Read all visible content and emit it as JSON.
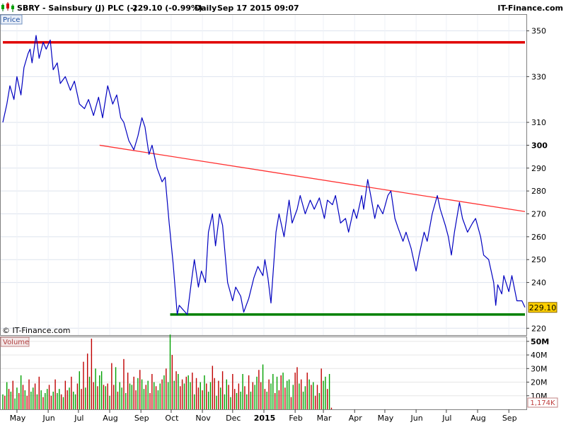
{
  "header": {
    "ticker": "SBRY - Sainsbury (J) PLC (-)",
    "quote": "229.10 (-0.99%)",
    "interval": "Daily",
    "datetime": "Sep 17 2015 09:07",
    "brand": "IT-Finance.com"
  },
  "copyright": "© IT-Finance.com",
  "colors": {
    "price_line": "#0000c0",
    "resistance": "#e00000",
    "trendline": "#ff3030",
    "support": "#008000",
    "volume_up": "#00a000",
    "volume_down": "#c00000",
    "last_price_badge": "#ffd000"
  },
  "chart_data": [
    {
      "type": "line",
      "panel_label": "Price",
      "last_price_label": "229.10",
      "ylim": [
        217,
        357
      ],
      "yticks": [
        350,
        330,
        310,
        300,
        290,
        280,
        270,
        260,
        250,
        240,
        220
      ],
      "grid": true,
      "x_start": "2014-04-17",
      "x_end": "2015-09-17",
      "xticks": [
        {
          "date": "2014-05-01",
          "label": "May"
        },
        {
          "date": "2014-06-01",
          "label": "Jun"
        },
        {
          "date": "2014-07-01",
          "label": "Jul"
        },
        {
          "date": "2014-08-01",
          "label": "Aug"
        },
        {
          "date": "2014-09-01",
          "label": "Sep"
        },
        {
          "date": "2014-10-01",
          "label": "Oct"
        },
        {
          "date": "2014-11-01",
          "label": "Nov"
        },
        {
          "date": "2014-12-01",
          "label": "Dec"
        },
        {
          "date": "2015-01-01",
          "label": "2015",
          "bold": true
        },
        {
          "date": "2015-02-01",
          "label": "Feb"
        },
        {
          "date": "2015-03-01",
          "label": "Mar"
        },
        {
          "date": "2015-04-01",
          "label": "Apr"
        },
        {
          "date": "2015-05-01",
          "label": "May"
        },
        {
          "date": "2015-06-01",
          "label": "Jun"
        },
        {
          "date": "2015-07-01",
          "label": "Jul"
        },
        {
          "date": "2015-08-01",
          "label": "Aug"
        },
        {
          "date": "2015-09-01",
          "label": "Sep"
        }
      ],
      "series": [
        {
          "points": [
            [
              "2014-04-17",
              310
            ],
            [
              "2014-04-21",
              318
            ],
            [
              "2014-04-24",
              326
            ],
            [
              "2014-04-28",
              320
            ],
            [
              "2014-05-01",
              330
            ],
            [
              "2014-05-05",
              322
            ],
            [
              "2014-05-08",
              334
            ],
            [
              "2014-05-12",
              340
            ],
            [
              "2014-05-14",
              342
            ],
            [
              "2014-05-16",
              336
            ],
            [
              "2014-05-20",
              348
            ],
            [
              "2014-05-23",
              338
            ],
            [
              "2014-05-27",
              345
            ],
            [
              "2014-05-30",
              342
            ],
            [
              "2014-06-03",
              346
            ],
            [
              "2014-06-06",
              333
            ],
            [
              "2014-06-10",
              336
            ],
            [
              "2014-06-13",
              327
            ],
            [
              "2014-06-18",
              330
            ],
            [
              "2014-06-23",
              324
            ],
            [
              "2014-06-27",
              328
            ],
            [
              "2014-07-02",
              318
            ],
            [
              "2014-07-07",
              316
            ],
            [
              "2014-07-11",
              320
            ],
            [
              "2014-07-16",
              313
            ],
            [
              "2014-07-21",
              321
            ],
            [
              "2014-07-25",
              312
            ],
            [
              "2014-07-30",
              326
            ],
            [
              "2014-08-04",
              318
            ],
            [
              "2014-08-08",
              322
            ],
            [
              "2014-08-12",
              312
            ],
            [
              "2014-08-15",
              310
            ],
            [
              "2014-08-20",
              302
            ],
            [
              "2014-08-25",
              298
            ],
            [
              "2014-08-29",
              304
            ],
            [
              "2014-09-02",
              312
            ],
            [
              "2014-09-05",
              308
            ],
            [
              "2014-09-09",
              296
            ],
            [
              "2014-09-12",
              300
            ],
            [
              "2014-09-17",
              290
            ],
            [
              "2014-09-22",
              284
            ],
            [
              "2014-09-25",
              286
            ],
            [
              "2014-09-29",
              266
            ],
            [
              "2014-10-03",
              248
            ],
            [
              "2014-10-07",
              226
            ],
            [
              "2014-10-09",
              230
            ],
            [
              "2014-10-13",
              228
            ],
            [
              "2014-10-17",
              226
            ],
            [
              "2014-10-21",
              240
            ],
            [
              "2014-10-24",
              250
            ],
            [
              "2014-10-28",
              238
            ],
            [
              "2014-10-31",
              245
            ],
            [
              "2014-11-04",
              240
            ],
            [
              "2014-11-07",
              262
            ],
            [
              "2014-11-11",
              270
            ],
            [
              "2014-11-14",
              256
            ],
            [
              "2014-11-18",
              270
            ],
            [
              "2014-11-21",
              265
            ],
            [
              "2014-11-26",
              240
            ],
            [
              "2014-12-01",
              232
            ],
            [
              "2014-12-04",
              238
            ],
            [
              "2014-12-09",
              234
            ],
            [
              "2014-12-12",
              227
            ],
            [
              "2014-12-17",
              233
            ],
            [
              "2014-12-22",
              242
            ],
            [
              "2014-12-26",
              247
            ],
            [
              "2014-12-31",
              243
            ],
            [
              "2015-01-02",
              250
            ],
            [
              "2015-01-05",
              242
            ],
            [
              "2015-01-08",
              231
            ],
            [
              "2015-01-13",
              262
            ],
            [
              "2015-01-16",
              270
            ],
            [
              "2015-01-21",
              260
            ],
            [
              "2015-01-26",
              276
            ],
            [
              "2015-01-29",
              266
            ],
            [
              "2015-02-03",
              272
            ],
            [
              "2015-02-06",
              278
            ],
            [
              "2015-02-11",
              270
            ],
            [
              "2015-02-16",
              276
            ],
            [
              "2015-02-20",
              272
            ],
            [
              "2015-02-25",
              277
            ],
            [
              "2015-03-02",
              268
            ],
            [
              "2015-03-05",
              276
            ],
            [
              "2015-03-10",
              274
            ],
            [
              "2015-03-13",
              278
            ],
            [
              "2015-03-18",
              266
            ],
            [
              "2015-03-23",
              268
            ],
            [
              "2015-03-26",
              262
            ],
            [
              "2015-03-31",
              272
            ],
            [
              "2015-04-03",
              268
            ],
            [
              "2015-04-08",
              278
            ],
            [
              "2015-04-10",
              272
            ],
            [
              "2015-04-14",
              285
            ],
            [
              "2015-04-17",
              278
            ],
            [
              "2015-04-21",
              268
            ],
            [
              "2015-04-24",
              274
            ],
            [
              "2015-04-29",
              270
            ],
            [
              "2015-05-04",
              278
            ],
            [
              "2015-05-07",
              280
            ],
            [
              "2015-05-11",
              268
            ],
            [
              "2015-05-14",
              264
            ],
            [
              "2015-05-19",
              258
            ],
            [
              "2015-05-22",
              262
            ],
            [
              "2015-05-27",
              255
            ],
            [
              "2015-06-01",
              245
            ],
            [
              "2015-06-04",
              252
            ],
            [
              "2015-06-09",
              262
            ],
            [
              "2015-06-12",
              258
            ],
            [
              "2015-06-17",
              270
            ],
            [
              "2015-06-22",
              278
            ],
            [
              "2015-06-25",
              272
            ],
            [
              "2015-06-30",
              265
            ],
            [
              "2015-07-03",
              260
            ],
            [
              "2015-07-06",
              252
            ],
            [
              "2015-07-09",
              262
            ],
            [
              "2015-07-14",
              275
            ],
            [
              "2015-07-17",
              268
            ],
            [
              "2015-07-22",
              262
            ],
            [
              "2015-07-27",
              266
            ],
            [
              "2015-07-30",
              268
            ],
            [
              "2015-08-04",
              260
            ],
            [
              "2015-08-07",
              252
            ],
            [
              "2015-08-12",
              250
            ],
            [
              "2015-08-17",
              240
            ],
            [
              "2015-08-19",
              230
            ],
            [
              "2015-08-21",
              239
            ],
            [
              "2015-08-25",
              235
            ],
            [
              "2015-08-27",
              243
            ],
            [
              "2015-09-01",
              236
            ],
            [
              "2015-09-04",
              243
            ],
            [
              "2015-09-09",
              232
            ],
            [
              "2015-09-14",
              232
            ],
            [
              "2015-09-17",
              229.1
            ]
          ]
        }
      ],
      "annotations": [
        {
          "kind": "hline",
          "value": 345,
          "from": "2014-04-17",
          "to": "2015-09-17",
          "color": "#e00000"
        },
        {
          "kind": "trend",
          "from": [
            "2014-07-22",
            300
          ],
          "to": [
            "2015-09-17",
            271
          ],
          "color": "#ff3030"
        },
        {
          "kind": "hline",
          "value": 226,
          "from": "2014-09-30",
          "to": "2015-09-17",
          "color": "#008000"
        }
      ]
    },
    {
      "type": "bar",
      "panel_label": "Volume",
      "last_volume_label": "1,174K",
      "ylim": [
        0,
        52
      ],
      "yticks": [
        {
          "value": 50,
          "label": "50M",
          "bold": true
        },
        {
          "value": 40,
          "label": "40M"
        },
        {
          "value": 30,
          "label": "30M"
        },
        {
          "value": 20,
          "label": "20M"
        },
        {
          "value": 10,
          "label": "10M"
        }
      ],
      "grid": true,
      "start": "2014-04-17",
      "interval_days": 2,
      "values": [
        11,
        10,
        20,
        15,
        13,
        21,
        8,
        16,
        12,
        25,
        18,
        14,
        10,
        22,
        13,
        16,
        19,
        11,
        24,
        14,
        9,
        12,
        15,
        18,
        10,
        13,
        22,
        12,
        15,
        11,
        9,
        21,
        14,
        16,
        24,
        13,
        11,
        19,
        28,
        15,
        35,
        16,
        41,
        24,
        52,
        20,
        30,
        17,
        25,
        28,
        18,
        17,
        19,
        10,
        34,
        18,
        31,
        13,
        20,
        16,
        37,
        12,
        27,
        19,
        18,
        24,
        14,
        23,
        29,
        22,
        15,
        18,
        21,
        12,
        26,
        20,
        17,
        14,
        19,
        22,
        25,
        30,
        20,
        55,
        40,
        21,
        28,
        26,
        17,
        22,
        19,
        24,
        25,
        20,
        27,
        11,
        23,
        16,
        20,
        14,
        25,
        19,
        13,
        20,
        32,
        23,
        10,
        21,
        16,
        28,
        11,
        22,
        18,
        9,
        26,
        15,
        12,
        19,
        13,
        26,
        17,
        11,
        25,
        13,
        20,
        18,
        24,
        29,
        20,
        33,
        15,
        13,
        22,
        19,
        26,
        12,
        24,
        14,
        25,
        27,
        16,
        21,
        22,
        9,
        18,
        27,
        31,
        19,
        22,
        13,
        17,
        27,
        22,
        18,
        20,
        10,
        18,
        12,
        30,
        21,
        24,
        15,
        26,
        1.2
      ],
      "up": [
        1,
        0,
        1,
        0,
        1,
        0,
        1,
        1,
        0,
        1,
        0,
        1,
        0,
        0,
        1,
        1,
        0,
        1,
        0,
        1,
        0,
        1,
        1,
        0,
        0,
        1,
        0,
        1,
        1,
        0,
        1,
        0,
        0,
        1,
        0,
        1,
        1,
        0,
        1,
        0,
        0,
        1,
        0,
        1,
        0,
        0,
        1,
        0,
        1,
        1,
        0,
        1,
        0,
        1,
        0,
        0,
        1,
        0,
        1,
        1,
        0,
        1,
        0,
        1,
        1,
        0,
        0,
        1,
        0,
        1,
        1,
        0,
        1,
        0,
        0,
        1,
        0,
        1,
        1,
        0,
        1,
        0,
        1,
        1,
        0,
        1,
        0,
        1,
        0,
        0,
        1,
        0,
        1,
        1,
        0,
        1,
        0,
        0,
        1,
        0,
        1,
        0,
        1,
        1,
        0,
        0,
        1,
        0,
        1,
        0,
        1,
        1,
        0,
        1,
        0,
        0,
        1,
        0,
        1,
        1,
        0,
        1,
        0,
        1,
        0,
        1,
        1,
        0,
        0,
        1,
        0,
        1,
        0,
        1,
        1,
        0,
        1,
        0,
        0,
        1,
        0,
        1,
        1,
        0,
        1,
        0,
        0,
        1,
        0,
        1,
        1,
        0,
        1,
        0,
        1,
        0,
        0,
        1,
        0,
        1,
        1,
        0,
        1,
        0
      ]
    }
  ]
}
